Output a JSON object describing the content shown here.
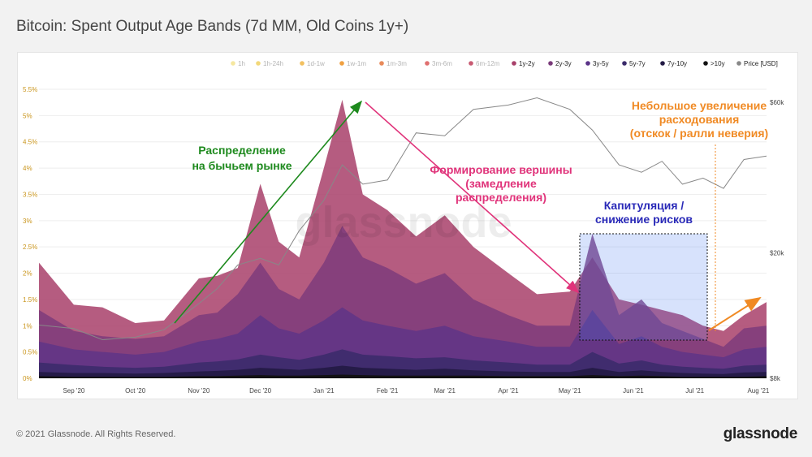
{
  "title": "Bitcoin: Spent Output Age Bands (7d MM, Old Coins 1y+)",
  "footer": {
    "copyright": "© 2021 Glassnode. All Rights Reserved.",
    "logo": "glassnode"
  },
  "watermark": "glassnode",
  "legend": [
    {
      "label": "1h",
      "color": "#f5e7a0",
      "active": false
    },
    {
      "label": "1h-24h",
      "color": "#f2d87a",
      "active": false
    },
    {
      "label": "1d-1w",
      "color": "#f2c060",
      "active": false
    },
    {
      "label": "1w-1m",
      "color": "#f0a040",
      "active": false
    },
    {
      "label": "1m-3m",
      "color": "#e88a5a",
      "active": false
    },
    {
      "label": "3m-6m",
      "color": "#e07070",
      "active": false
    },
    {
      "label": "6m-12m",
      "color": "#c85a72",
      "active": false
    },
    {
      "label": "1y-2y",
      "color": "#a8406a",
      "active": true
    },
    {
      "label": "2y-3y",
      "color": "#7a3a7a",
      "active": true
    },
    {
      "label": "3y-5y",
      "color": "#5a3388",
      "active": true
    },
    {
      "label": "5y-7y",
      "color": "#3a2a6a",
      "active": true
    },
    {
      "label": "7y-10y",
      "color": "#221a44",
      "active": true
    },
    {
      "label": ">10y",
      "color": "#111111",
      "active": true
    },
    {
      "label": "Price [USD]",
      "color": "#888888",
      "active": true
    }
  ],
  "annotations": {
    "distribution": [
      "Распределение",
      "на бычьем рынке"
    ],
    "top": [
      "Формирование вершины",
      "(замедление",
      "распределения)"
    ],
    "capitulation": [
      "Капитуляция /",
      "снижение рисков"
    ],
    "increase": [
      "Небольшое увеличение",
      "расходования",
      "(отскок / ралли неверия)"
    ]
  },
  "chart_data": {
    "type": "area",
    "title": "Bitcoin: Spent Output Age Bands (7d MM, Old Coins 1y+)",
    "x_ticks": [
      "Sep '20",
      "Oct '20",
      "Nov '20",
      "Dec '20",
      "Jan '21",
      "Feb '21",
      "Mar '21",
      "Apr '21",
      "May '21",
      "Jun '21",
      "Jul '21",
      "Aug '21"
    ],
    "y_left_ticks": [
      "0%",
      "0.5%",
      "1%",
      "1.5%",
      "2%",
      "2.5%",
      "3%",
      "3.5%",
      "4%",
      "4.5%",
      "5%",
      "5.5%"
    ],
    "y_left_range": [
      0,
      5.5
    ],
    "y_right_ticks": [
      "$8k",
      "$20k",
      "$60k"
    ],
    "y_right_scale": "log",
    "y_right_range": [
      8000,
      60000
    ],
    "x": [
      "2020-08-15",
      "2020-09-01",
      "2020-09-15",
      "2020-10-01",
      "2020-10-15",
      "2020-11-01",
      "2020-11-10",
      "2020-11-20",
      "2020-12-01",
      "2020-12-10",
      "2020-12-20",
      "2021-01-01",
      "2021-01-10",
      "2021-01-20",
      "2021-02-01",
      "2021-02-15",
      "2021-03-01",
      "2021-03-15",
      "2021-04-01",
      "2021-04-15",
      "2021-05-01",
      "2021-05-12",
      "2021-05-25",
      "2021-06-05",
      "2021-06-15",
      "2021-06-25",
      "2021-07-05",
      "2021-07-15",
      "2021-07-25",
      "2021-08-05"
    ],
    "series": [
      {
        "name": "1y-2y",
        "color": "#a8406a",
        "values": [
          2.2,
          1.4,
          1.35,
          1.05,
          1.1,
          1.9,
          1.95,
          2.1,
          3.7,
          2.6,
          2.3,
          4.0,
          5.3,
          3.5,
          3.2,
          2.7,
          3.1,
          2.5,
          2.0,
          1.6,
          1.65,
          2.3,
          1.5,
          1.4,
          1.3,
          1.2,
          1.0,
          0.9,
          1.2,
          1.45
        ]
      },
      {
        "name": "2y-3y",
        "color": "#7a3a7a",
        "values": [
          1.3,
          0.9,
          0.8,
          0.75,
          0.8,
          1.2,
          1.25,
          1.6,
          2.2,
          1.7,
          1.5,
          2.2,
          2.9,
          2.3,
          2.1,
          1.8,
          2.0,
          1.5,
          1.2,
          1.0,
          1.0,
          2.75,
          1.2,
          1.5,
          1.05,
          0.9,
          0.75,
          0.6,
          0.95,
          1.0
        ]
      },
      {
        "name": "3y-5y",
        "color": "#5a3388",
        "values": [
          0.7,
          0.55,
          0.5,
          0.45,
          0.5,
          0.7,
          0.75,
          0.85,
          1.2,
          0.95,
          0.85,
          1.1,
          1.35,
          1.1,
          1.0,
          0.9,
          1.0,
          0.8,
          0.7,
          0.6,
          0.6,
          1.3,
          0.65,
          0.8,
          0.6,
          0.5,
          0.45,
          0.4,
          0.55,
          0.6
        ]
      },
      {
        "name": "5y-7y",
        "color": "#3a2a6a",
        "values": [
          0.3,
          0.25,
          0.22,
          0.2,
          0.22,
          0.3,
          0.32,
          0.36,
          0.45,
          0.4,
          0.35,
          0.45,
          0.55,
          0.45,
          0.42,
          0.38,
          0.4,
          0.34,
          0.3,
          0.26,
          0.26,
          0.5,
          0.28,
          0.34,
          0.26,
          0.22,
          0.2,
          0.18,
          0.24,
          0.26
        ]
      },
      {
        "name": "7y-10y",
        "color": "#221a44",
        "values": [
          0.12,
          0.1,
          0.1,
          0.09,
          0.1,
          0.13,
          0.14,
          0.16,
          0.2,
          0.18,
          0.16,
          0.2,
          0.24,
          0.2,
          0.18,
          0.16,
          0.18,
          0.15,
          0.13,
          0.12,
          0.12,
          0.2,
          0.12,
          0.15,
          0.12,
          0.1,
          0.09,
          0.08,
          0.11,
          0.12
        ]
      },
      {
        "name": ">10y",
        "color": "#111111",
        "values": [
          0.04,
          0.03,
          0.03,
          0.03,
          0.03,
          0.04,
          0.04,
          0.05,
          0.06,
          0.05,
          0.05,
          0.06,
          0.07,
          0.06,
          0.05,
          0.05,
          0.05,
          0.05,
          0.04,
          0.04,
          0.04,
          0.06,
          0.04,
          0.05,
          0.04,
          0.03,
          0.03,
          0.03,
          0.03,
          0.04
        ]
      },
      {
        "name": "Price [USD]",
        "color": "#888888",
        "axis": "right",
        "values": [
          11800,
          11500,
          10600,
          10800,
          11400,
          13800,
          15400,
          18300,
          19200,
          18300,
          23500,
          29300,
          38000,
          33000,
          34000,
          48000,
          47000,
          57000,
          58800,
          62000,
          57000,
          49000,
          38000,
          36000,
          39000,
          33000,
          34500,
          32000,
          39500,
          40500
        ]
      }
    ]
  }
}
